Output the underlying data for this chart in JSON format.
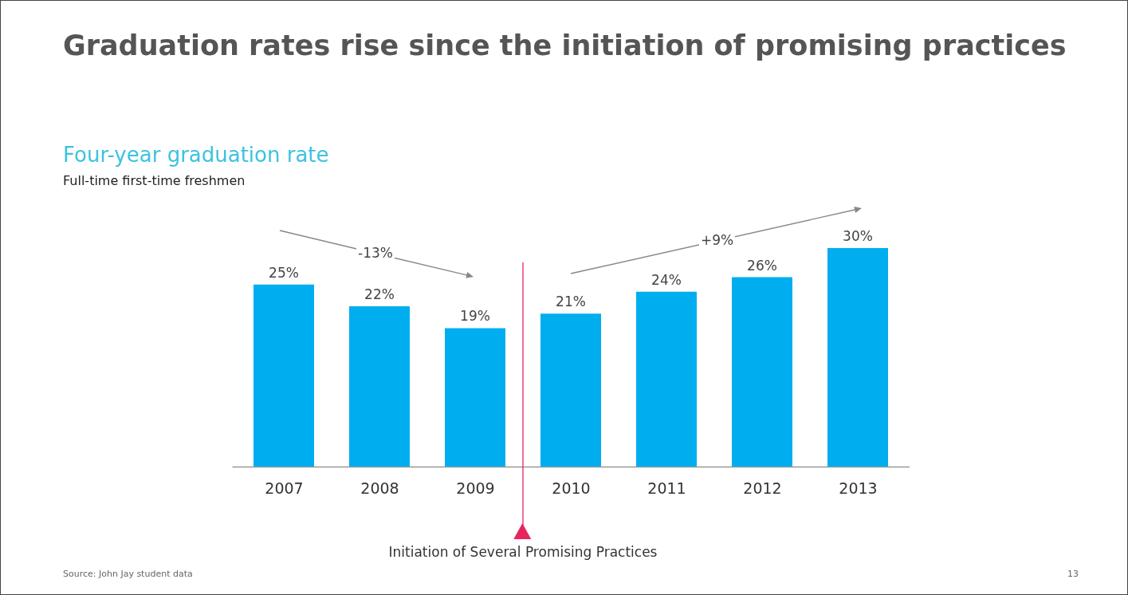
{
  "chart_data": {
    "type": "bar",
    "title": "Graduation rates rise since the initiation of promising practices",
    "subtitle": "Four-year graduation rate",
    "x": [
      2007,
      2008,
      2009,
      2010,
      2011,
      2012,
      2013
    ],
    "xlim": [
      2006.5,
      2013.5
    ],
    "xticks": [
      2007,
      2008,
      2009,
      2010,
      2011,
      2012,
      2013
    ],
    "values": [
      25,
      22,
      19,
      21,
      24,
      26,
      30
    ],
    "value_labels": [
      "25%",
      "22%",
      "19%",
      "21%",
      "24%",
      "26%",
      "30%"
    ],
    "color": "#00aeef",
    "ref_lines": [
      {
        "axis": "x",
        "value": 2009.5,
        "label": "Initiation of Several Promising Practices",
        "color": "#e8245e"
      }
    ],
    "annotations": [
      "Full-time first-time freshmen",
      "-13%",
      "+9%",
      "Source: John Jay student data",
      "13"
    ],
    "grid": false
  }
}
